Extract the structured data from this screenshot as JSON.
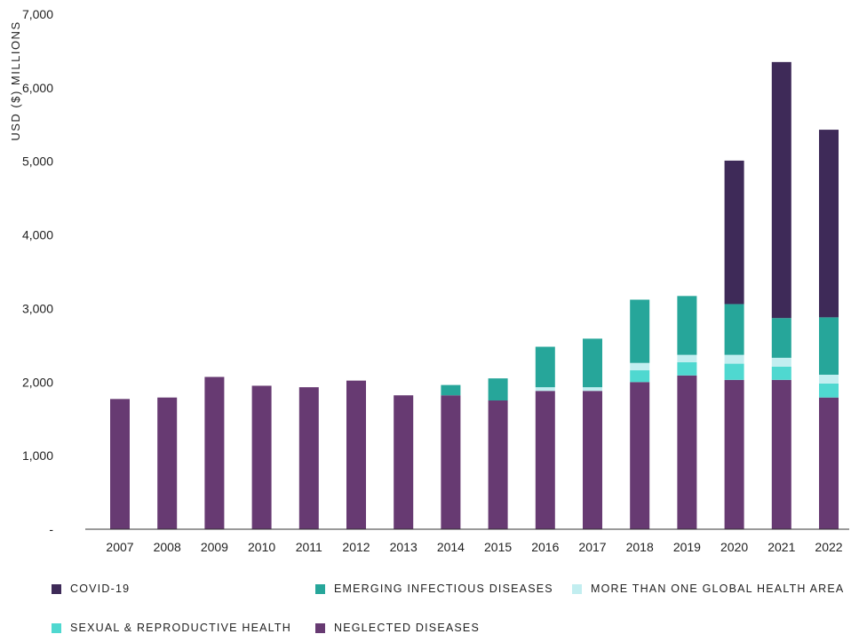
{
  "chart_data": {
    "type": "bar",
    "stacked": true,
    "ylabel": "USD ($) MILLIONS",
    "xlabel": "",
    "ylim": [
      0,
      7000
    ],
    "yticks": [
      0,
      1000,
      2000,
      3000,
      4000,
      5000,
      6000,
      7000
    ],
    "ytick_labels": [
      "-",
      "1,000",
      "2,000",
      "3,000",
      "4,000",
      "5,000",
      "6,000",
      "7,000"
    ],
    "grid": false,
    "legend_position": "bottom",
    "categories": [
      "2007",
      "2008",
      "2009",
      "2010",
      "2011",
      "2012",
      "2013",
      "2014",
      "2015",
      "2016",
      "2017",
      "2018",
      "2019",
      "2020",
      "2021",
      "2022"
    ],
    "series": [
      {
        "name": "NEGLECTED DISEASES",
        "color": "#673a72",
        "values": [
          1770,
          1790,
          2070,
          1950,
          1930,
          2020,
          1820,
          1820,
          1750,
          1880,
          1880,
          2000,
          2090,
          2030,
          2030,
          1790
        ]
      },
      {
        "name": "SEXUAL & REPRODUCTIVE HEALTH",
        "color": "#4fd8d0",
        "values": [
          0,
          0,
          0,
          0,
          0,
          0,
          0,
          0,
          0,
          0,
          0,
          160,
          180,
          220,
          180,
          190
        ]
      },
      {
        "name": "MORE THAN ONE GLOBAL HEALTH AREA",
        "color": "#c2eef0",
        "values": [
          0,
          0,
          0,
          0,
          0,
          0,
          0,
          0,
          0,
          50,
          50,
          100,
          100,
          120,
          120,
          120
        ]
      },
      {
        "name": "EMERGING INFECTIOUS DISEASES",
        "color": "#26a69a",
        "values": [
          0,
          0,
          0,
          0,
          0,
          0,
          0,
          140,
          300,
          550,
          660,
          860,
          800,
          690,
          540,
          780
        ]
      },
      {
        "name": "COVID-19",
        "color": "#3e2a58",
        "values": [
          0,
          0,
          0,
          0,
          0,
          0,
          0,
          0,
          0,
          0,
          0,
          0,
          0,
          1950,
          3480,
          2550
        ]
      }
    ]
  },
  "legend": {
    "items": [
      {
        "label": "COVID-19",
        "color": "#3e2a58"
      },
      {
        "label": "EMERGING INFECTIOUS DISEASES",
        "color": "#26a69a"
      },
      {
        "label": "MORE THAN ONE GLOBAL HEALTH AREA",
        "color": "#c2eef0"
      },
      {
        "label": "SEXUAL & REPRODUCTIVE HEALTH",
        "color": "#4fd8d0"
      },
      {
        "label": "NEGLECTED DISEASES",
        "color": "#673a72"
      }
    ]
  }
}
